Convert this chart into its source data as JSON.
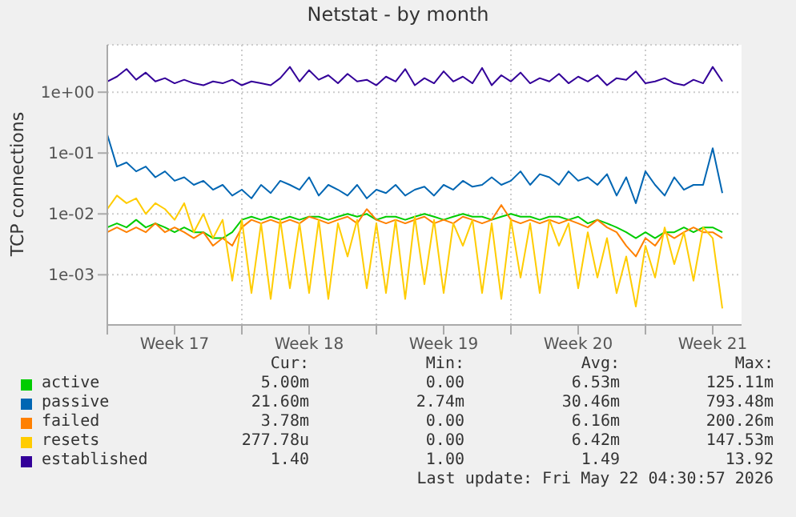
{
  "chart_data": {
    "type": "line",
    "title": "Netstat - by month",
    "ylabel": "TCP connections",
    "x": [
      "2026-04-20T00:00",
      "2026-04-20T12:00",
      "2026-04-21T00:00",
      "2026-04-21T12:00",
      "2026-04-22T00:00",
      "2026-04-22T12:00",
      "2026-04-23T00:00",
      "2026-04-23T12:00",
      "2026-04-24T00:00",
      "2026-04-24T12:00",
      "2026-04-25T00:00",
      "2026-04-25T12:00",
      "2026-04-26T00:00",
      "2026-04-26T12:00",
      "2026-04-27T00:00",
      "2026-04-27T12:00",
      "2026-04-28T00:00",
      "2026-04-28T12:00",
      "2026-04-29T00:00",
      "2026-04-29T12:00",
      "2026-04-30T00:00",
      "2026-04-30T12:00",
      "2026-05-01T00:00",
      "2026-05-01T12:00",
      "2026-05-02T00:00",
      "2026-05-02T12:00",
      "2026-05-03T00:00",
      "2026-05-03T12:00",
      "2026-05-04T00:00",
      "2026-05-04T12:00",
      "2026-05-05T00:00",
      "2026-05-05T12:00",
      "2026-05-06T00:00",
      "2026-05-06T12:00",
      "2026-05-07T00:00",
      "2026-05-07T12:00",
      "2026-05-08T00:00",
      "2026-05-08T12:00",
      "2026-05-09T00:00",
      "2026-05-09T12:00",
      "2026-05-10T00:00",
      "2026-05-10T12:00",
      "2026-05-11T00:00",
      "2026-05-11T12:00",
      "2026-05-12T00:00",
      "2026-05-12T12:00",
      "2026-05-13T00:00",
      "2026-05-13T12:00",
      "2026-05-14T00:00",
      "2026-05-14T12:00",
      "2026-05-15T00:00",
      "2026-05-15T12:00",
      "2026-05-16T00:00",
      "2026-05-16T12:00",
      "2026-05-17T00:00",
      "2026-05-17T12:00",
      "2026-05-18T00:00",
      "2026-05-18T12:00",
      "2026-05-19T00:00",
      "2026-05-19T12:00",
      "2026-05-20T00:00",
      "2026-05-20T12:00",
      "2026-05-21T00:00",
      "2026-05-21T12:00",
      "2026-05-22T00:00"
    ],
    "series": [
      {
        "name": "active",
        "color": "#00cc00",
        "values": [
          0.006,
          0.007,
          0.006,
          0.008,
          0.006,
          0.007,
          0.006,
          0.005,
          0.006,
          0.005,
          0.005,
          0.004,
          0.004,
          0.005,
          0.008,
          0.009,
          0.008,
          0.009,
          0.008,
          0.009,
          0.008,
          0.009,
          0.009,
          0.008,
          0.009,
          0.01,
          0.009,
          0.01,
          0.008,
          0.009,
          0.009,
          0.008,
          0.009,
          0.01,
          0.009,
          0.008,
          0.009,
          0.01,
          0.009,
          0.009,
          0.008,
          0.009,
          0.01,
          0.009,
          0.009,
          0.008,
          0.009,
          0.009,
          0.008,
          0.009,
          0.007,
          0.008,
          0.007,
          0.006,
          0.005,
          0.004,
          0.005,
          0.004,
          0.005,
          0.005,
          0.006,
          0.005,
          0.006,
          0.006,
          0.005
        ]
      },
      {
        "name": "passive",
        "color": "#0066b3",
        "values": [
          0.2,
          0.06,
          0.07,
          0.05,
          0.06,
          0.04,
          0.05,
          0.035,
          0.04,
          0.03,
          0.035,
          0.025,
          0.03,
          0.02,
          0.025,
          0.018,
          0.03,
          0.022,
          0.035,
          0.03,
          0.025,
          0.04,
          0.02,
          0.03,
          0.025,
          0.02,
          0.03,
          0.018,
          0.025,
          0.022,
          0.03,
          0.02,
          0.025,
          0.028,
          0.02,
          0.03,
          0.025,
          0.035,
          0.028,
          0.03,
          0.04,
          0.03,
          0.035,
          0.05,
          0.03,
          0.045,
          0.04,
          0.03,
          0.05,
          0.035,
          0.04,
          0.03,
          0.045,
          0.02,
          0.04,
          0.015,
          0.05,
          0.03,
          0.02,
          0.04,
          0.025,
          0.03,
          0.03,
          0.12,
          0.022
        ]
      },
      {
        "name": "failed",
        "color": "#ff8000",
        "values": [
          0.005,
          0.006,
          0.005,
          0.006,
          0.005,
          0.007,
          0.005,
          0.006,
          0.005,
          0.004,
          0.005,
          0.003,
          0.004,
          0.003,
          0.006,
          0.008,
          0.007,
          0.008,
          0.007,
          0.008,
          0.007,
          0.009,
          0.008,
          0.007,
          0.008,
          0.009,
          0.007,
          0.012,
          0.008,
          0.007,
          0.008,
          0.007,
          0.008,
          0.009,
          0.007,
          0.008,
          0.007,
          0.009,
          0.008,
          0.007,
          0.008,
          0.014,
          0.008,
          0.007,
          0.008,
          0.007,
          0.008,
          0.007,
          0.008,
          0.007,
          0.006,
          0.008,
          0.006,
          0.005,
          0.003,
          0.002,
          0.004,
          0.003,
          0.005,
          0.004,
          0.005,
          0.006,
          0.005,
          0.005,
          0.004
        ]
      },
      {
        "name": "resets",
        "color": "#ffcc00",
        "values": [
          0.012,
          0.02,
          0.015,
          0.018,
          0.01,
          0.015,
          0.012,
          0.008,
          0.015,
          0.005,
          0.01,
          0.004,
          0.008,
          0.0008,
          0.008,
          0.0005,
          0.007,
          0.0004,
          0.008,
          0.0006,
          0.007,
          0.0005,
          0.008,
          0.0004,
          0.007,
          0.002,
          0.008,
          0.0006,
          0.007,
          0.0005,
          0.008,
          0.0004,
          0.009,
          0.0007,
          0.008,
          0.0005,
          0.007,
          0.003,
          0.008,
          0.0005,
          0.007,
          0.0004,
          0.008,
          0.0009,
          0.007,
          0.0005,
          0.008,
          0.003,
          0.007,
          0.0006,
          0.005,
          0.0009,
          0.004,
          0.0005,
          0.002,
          0.0003,
          0.003,
          0.0009,
          0.006,
          0.0015,
          0.005,
          0.0008,
          0.006,
          0.004,
          0.00028
        ]
      },
      {
        "name": "established",
        "color": "#330099",
        "values": [
          1.5,
          1.8,
          2.4,
          1.6,
          2.1,
          1.5,
          1.7,
          1.4,
          1.6,
          1.4,
          1.3,
          1.5,
          1.4,
          1.6,
          1.3,
          1.5,
          1.4,
          1.3,
          1.7,
          2.6,
          1.5,
          2.3,
          1.6,
          1.9,
          1.4,
          2.0,
          1.5,
          1.6,
          1.3,
          1.8,
          1.5,
          2.4,
          1.3,
          1.7,
          1.4,
          2.2,
          1.5,
          1.8,
          1.4,
          2.5,
          1.3,
          1.9,
          1.5,
          2.1,
          1.4,
          1.7,
          1.5,
          2.0,
          1.4,
          1.8,
          1.5,
          1.9,
          1.3,
          1.7,
          1.6,
          2.2,
          1.4,
          1.5,
          1.7,
          1.4,
          1.3,
          1.6,
          1.4,
          2.6,
          1.5
        ]
      }
    ],
    "log": "y",
    "xlim": [
      "2026-04-20T00:00",
      "2026-05-23T00:00"
    ],
    "xticks": [
      {
        "value": "2026-04-20T00:00",
        "label": null
      },
      {
        "value": "2026-04-23T12:00",
        "label": "Week 17"
      },
      {
        "value": "2026-04-27T00:00",
        "label": null
      },
      {
        "value": "2026-04-30T12:00",
        "label": "Week 18"
      },
      {
        "value": "2026-05-04T00:00",
        "label": null
      },
      {
        "value": "2026-05-07T12:00",
        "label": "Week 19"
      },
      {
        "value": "2026-05-11T00:00",
        "label": null
      },
      {
        "value": "2026-05-14T12:00",
        "label": "Week 20"
      },
      {
        "value": "2026-05-18T00:00",
        "label": null
      },
      {
        "value": "2026-05-21T12:00",
        "label": "Week 21"
      }
    ],
    "ylim": [
      0.00015,
      6
    ],
    "yticks": [
      {
        "value": 0.001,
        "label": "1e-03"
      },
      {
        "value": 0.01,
        "label": "1e-02"
      },
      {
        "value": 0.1,
        "label": "1e-01"
      },
      {
        "value": 1,
        "label": "1e+00"
      }
    ],
    "grid": true,
    "legend": "bottom",
    "marker": "none",
    "line_style": "solid",
    "annotations": [
      "Cur:",
      "Min:",
      "Avg:",
      "Max:",
      "5.00m",
      "0.00",
      "6.53m",
      "125.11m",
      "21.60m",
      "2.74m",
      "30.46m",
      "793.48m",
      "3.78m",
      "0.00",
      "6.16m",
      "200.26m",
      "277.78u",
      "0.00",
      "6.42m",
      "147.53m",
      "1.40",
      "1.00",
      "1.49",
      "13.92",
      "Last update: Fri May 22 04:30:57 2026"
    ]
  }
}
